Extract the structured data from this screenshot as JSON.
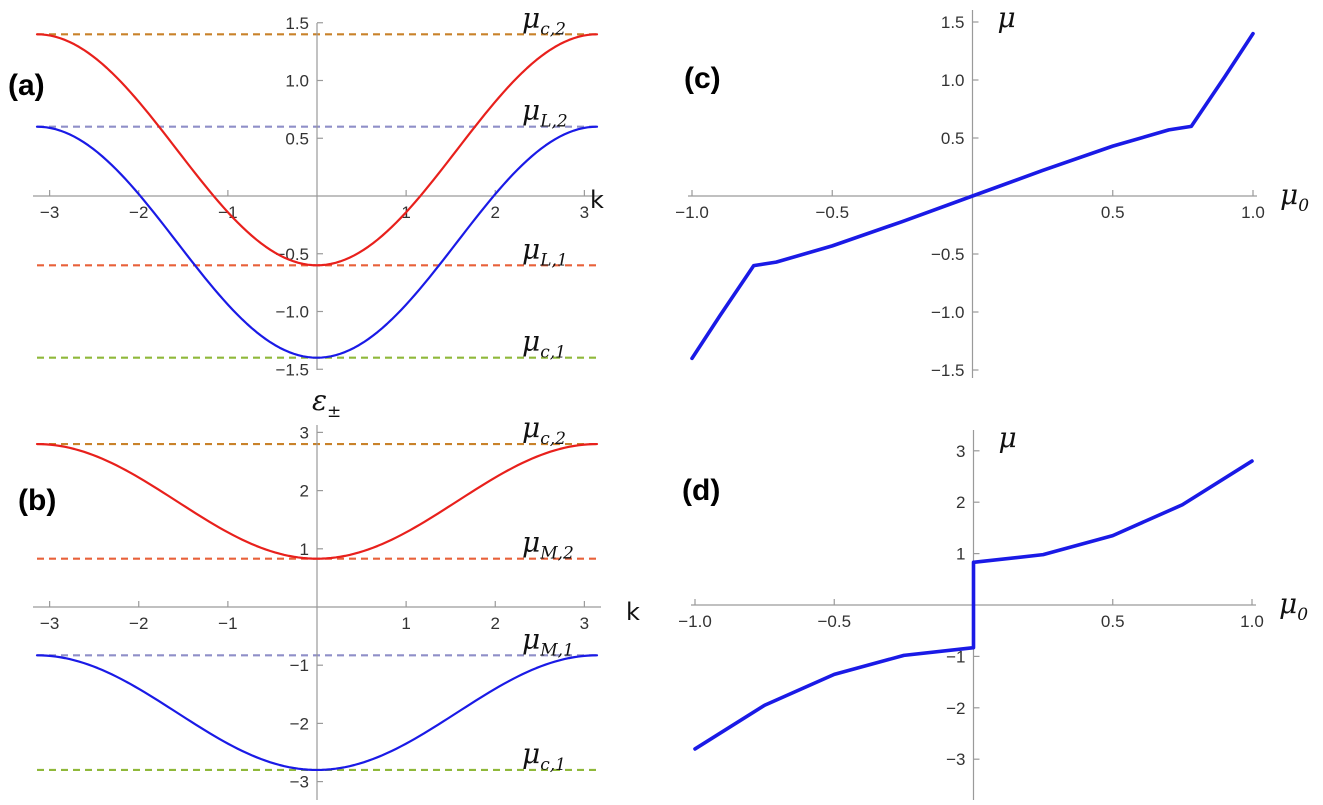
{
  "chart_data": [
    {
      "id": "a",
      "type": "line",
      "panel_label": "(a)",
      "xlabel": "k",
      "ylabel": "",
      "xlim": [
        -3.14159,
        3.14159
      ],
      "ylim": [
        -1.5,
        1.5
      ],
      "x_ticks": [
        "-3",
        "-2",
        "-1",
        "1",
        "2",
        "3"
      ],
      "y_ticks": [
        "1.5",
        "1.0",
        "0.5",
        "-0.5",
        "-1.0",
        "-1.5"
      ],
      "series": [
        {
          "color": "#e8201c",
          "x": [
            -3.14159,
            -2.5,
            -2.0,
            -1.5,
            -1.0,
            -0.5,
            0.0,
            0.5,
            1.0,
            1.5,
            2.0,
            2.5,
            3.14159
          ],
          "y": [
            1.4,
            1.198,
            0.701,
            0.07,
            -0.369,
            -0.502,
            -0.6,
            -0.502,
            -0.369,
            0.07,
            0.701,
            1.198,
            1.4
          ]
        },
        {
          "color": "#1a1ae6",
          "x": [
            -3.14159,
            -2.5,
            -2.0,
            -1.5,
            -1.0,
            -0.5,
            0.0,
            0.5,
            1.0,
            1.5,
            2.0,
            2.5,
            3.14159
          ],
          "y": [
            0.6,
            0.4,
            0.0,
            -0.5,
            -1.0,
            -1.3,
            -1.4,
            -1.3,
            -1.0,
            -0.5,
            0.0,
            0.4,
            0.6
          ]
        }
      ],
      "reference_lines": [
        {
          "y": 1.4,
          "color": "#c9822a",
          "label": "μ",
          "sub": "c,2"
        },
        {
          "y": 0.6,
          "color": "#8f8fc8",
          "label": "μ",
          "sub": "L,2"
        },
        {
          "y": -0.6,
          "color": "#e8613a",
          "label": "μ",
          "sub": "L,1"
        },
        {
          "y": -1.4,
          "color": "#8fb83a",
          "label": "μ",
          "sub": "c,1"
        }
      ]
    },
    {
      "id": "b",
      "type": "line",
      "panel_label": "(b)",
      "xlabel": "k",
      "ylabel": "ε±",
      "xlim": [
        -3.14159,
        3.14159
      ],
      "ylim": [
        -3,
        3
      ],
      "x_ticks": [
        "-3",
        "-2",
        "-1",
        "1",
        "2",
        "3"
      ],
      "y_ticks": [
        "3",
        "2",
        "1",
        "-1",
        "-2",
        "-3"
      ],
      "series": [
        {
          "color": "#e8201c",
          "x": [
            -3.14159,
            -2.5,
            -2.0,
            -1.5,
            -1.0,
            -0.5,
            0.0,
            0.5,
            1.0,
            1.5,
            2.0,
            2.5,
            3.14159
          ],
          "y": [
            2.8,
            2.6,
            2.22,
            1.67,
            1.22,
            0.95,
            0.83,
            0.95,
            1.22,
            1.67,
            2.22,
            2.6,
            2.8
          ]
        },
        {
          "color": "#1a1ae6",
          "x": [
            -3.14159,
            -2.5,
            -2.0,
            -1.5,
            -1.0,
            -0.5,
            0.0,
            0.5,
            1.0,
            1.5,
            2.0,
            2.5,
            3.14159
          ],
          "y": [
            -0.83,
            -0.95,
            -1.22,
            -1.67,
            -2.22,
            -2.6,
            -2.8,
            -2.6,
            -2.22,
            -1.67,
            -1.22,
            -0.95,
            -0.83
          ]
        }
      ],
      "reference_lines": [
        {
          "y": 2.8,
          "color": "#c9822a",
          "label": "μ",
          "sub": "c,2"
        },
        {
          "y": 0.83,
          "color": "#e8613a",
          "label": "μ",
          "sub": "M,2"
        },
        {
          "y": -0.83,
          "color": "#8f8fc8",
          "label": "μ",
          "sub": "M,1"
        },
        {
          "y": -2.8,
          "color": "#8fb83a",
          "label": "μ",
          "sub": "c,1"
        }
      ]
    },
    {
      "id": "c",
      "type": "line",
      "panel_label": "(c)",
      "xlabel": "μ",
      "xlabel_sub": "0",
      "ylabel": "μ",
      "xlim": [
        -1.0,
        1.0
      ],
      "ylim": [
        -1.5,
        1.5
      ],
      "x_ticks": [
        "-1.0",
        "-0.5",
        "0.5",
        "1.0"
      ],
      "y_ticks": [
        "1.5",
        "1.0",
        "0.5",
        "-0.5",
        "-1.0",
        "-1.5"
      ],
      "series": [
        {
          "color": "#1a1ae6",
          "x": [
            -1.0,
            -0.9,
            -0.78,
            -0.7,
            -0.5,
            -0.25,
            0.0,
            0.25,
            0.5,
            0.7,
            0.78,
            0.9,
            1.0
          ],
          "y": [
            -1.4,
            -1.03,
            -0.6,
            -0.57,
            -0.43,
            -0.22,
            0.0,
            0.22,
            0.43,
            0.57,
            0.6,
            1.03,
            1.4
          ]
        }
      ]
    },
    {
      "id": "d",
      "type": "line",
      "panel_label": "(d)",
      "xlabel": "μ",
      "xlabel_sub": "0",
      "ylabel": "μ",
      "xlim": [
        -1.0,
        1.0
      ],
      "ylim": [
        -3,
        3
      ],
      "x_ticks": [
        "-1.0",
        "-0.5",
        "0.5",
        "1.0"
      ],
      "y_ticks": [
        "3",
        "2",
        "1",
        "-1",
        "-2",
        "-3"
      ],
      "series": [
        {
          "color": "#1a1ae6",
          "x": [
            -1.0,
            -0.75,
            -0.5,
            -0.25,
            0.0,
            0.0,
            0.0,
            0.25,
            0.5,
            0.75,
            1.0
          ],
          "y": [
            -2.8,
            -1.95,
            -1.35,
            -0.98,
            -0.83,
            -0.83,
            0.83,
            0.98,
            1.35,
            1.95,
            2.8
          ]
        }
      ]
    }
  ]
}
